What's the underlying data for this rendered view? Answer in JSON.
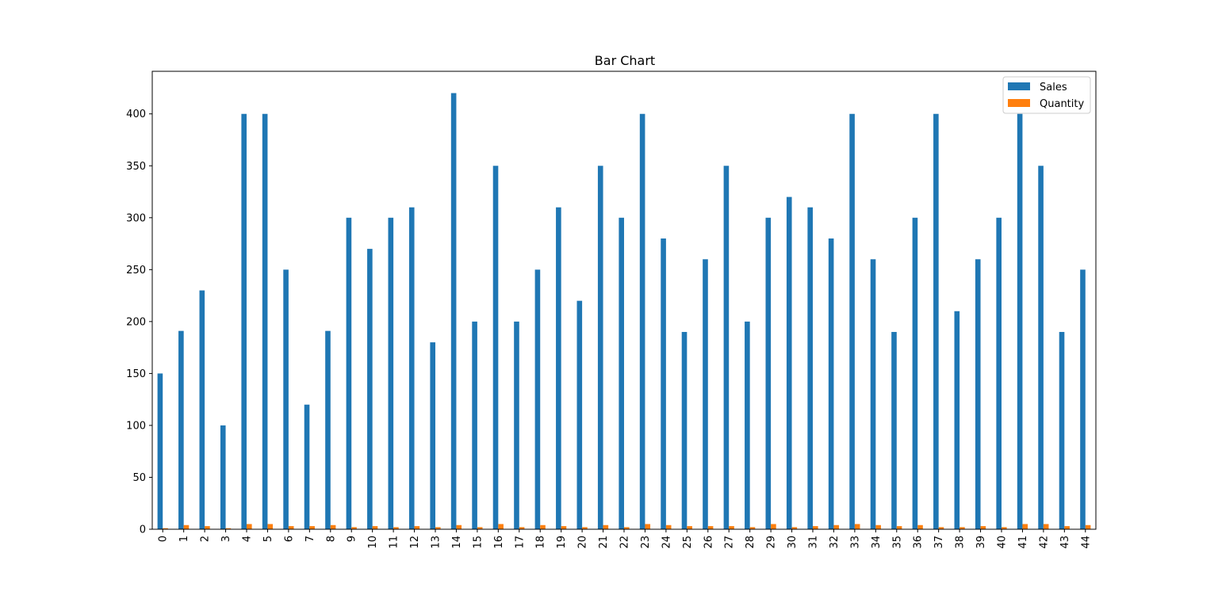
{
  "chart_data": {
    "type": "bar",
    "title": "Bar Chart",
    "xlabel": "",
    "ylabel": "",
    "categories": [
      "0",
      "1",
      "2",
      "3",
      "4",
      "5",
      "6",
      "7",
      "8",
      "9",
      "10",
      "11",
      "12",
      "13",
      "14",
      "15",
      "16",
      "17",
      "18",
      "19",
      "20",
      "21",
      "22",
      "23",
      "24",
      "25",
      "26",
      "27",
      "28",
      "29",
      "30",
      "31",
      "32",
      "33",
      "34",
      "35",
      "36",
      "37",
      "38",
      "39",
      "40",
      "41",
      "42",
      "43",
      "44"
    ],
    "series": [
      {
        "name": "Sales",
        "color": "#1f77b4",
        "values": [
          150,
          191,
          230,
          100,
          400,
          400,
          250,
          120,
          191,
          300,
          270,
          300,
          310,
          180,
          420,
          200,
          350,
          200,
          250,
          310,
          220,
          350,
          300,
          400,
          280,
          190,
          260,
          350,
          200,
          300,
          320,
          310,
          280,
          400,
          260,
          190,
          300,
          400,
          210,
          260,
          300,
          400,
          350,
          190,
          250
        ]
      },
      {
        "name": "Quantity",
        "color": "#ff7f0e",
        "values": [
          1,
          4,
          3,
          1,
          5,
          5,
          3,
          3,
          4,
          2,
          3,
          2,
          3,
          2,
          4,
          2,
          5,
          2,
          4,
          3,
          2,
          4,
          2,
          5,
          4,
          3,
          3,
          3,
          2,
          5,
          2,
          3,
          4,
          5,
          4,
          3,
          4,
          2,
          2,
          3,
          2,
          5,
          5,
          3,
          4
        ]
      }
    ],
    "ylim": [
      0,
      441
    ],
    "yticks": [
      0,
      50,
      100,
      150,
      200,
      250,
      300,
      350,
      400
    ],
    "grid": false,
    "legend_position": "upper-right"
  }
}
